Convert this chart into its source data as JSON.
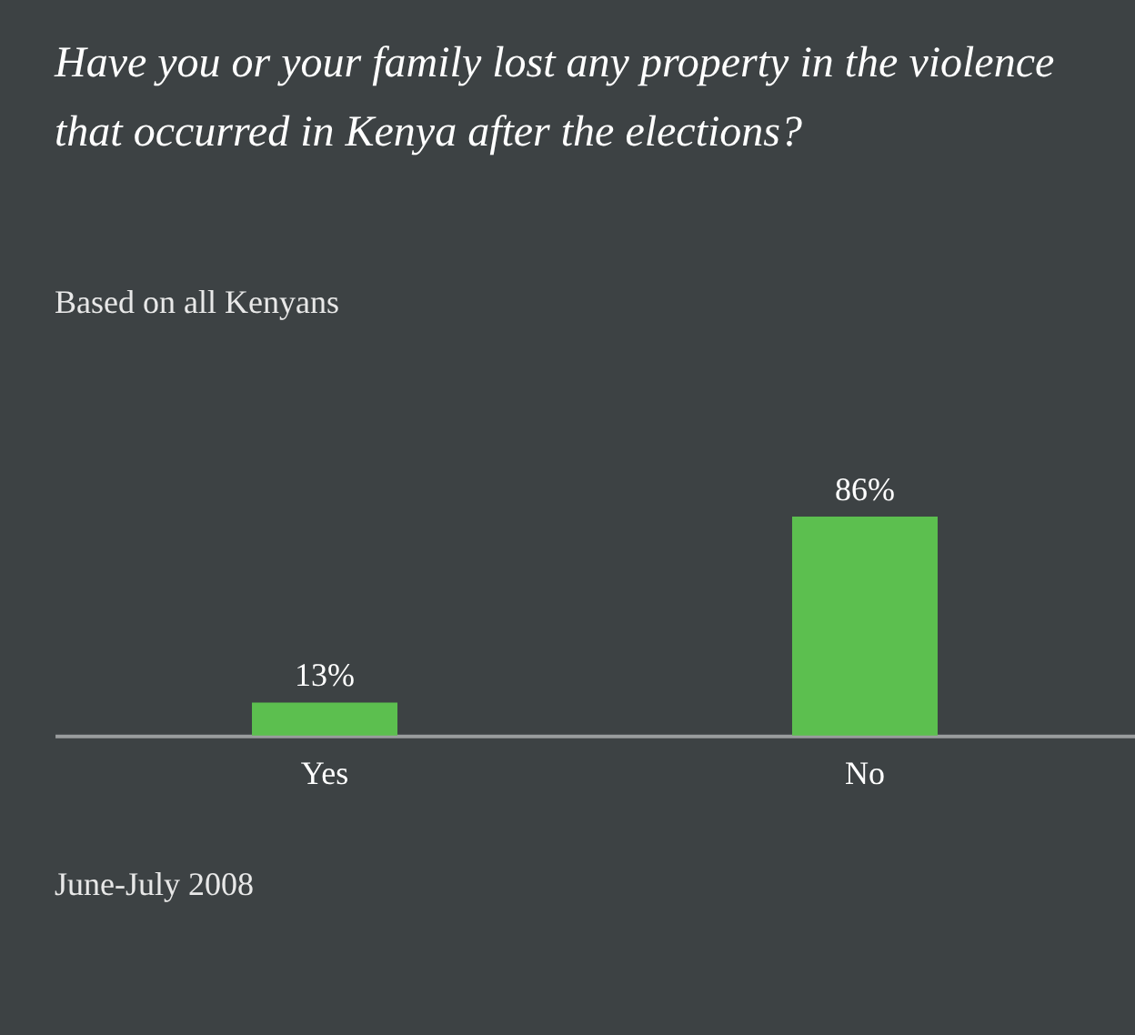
{
  "chart_data": {
    "type": "bar",
    "title": "Have you or your family lost any property in the violence that occurred in Kenya after the elections?",
    "subtitle": "Based on all Kenyans",
    "categories": [
      "Yes",
      "No"
    ],
    "values": [
      13,
      86
    ],
    "value_labels": [
      "13%",
      "86%"
    ],
    "color": "#5cbf4f",
    "annotations": [
      "June-July 2008"
    ]
  }
}
